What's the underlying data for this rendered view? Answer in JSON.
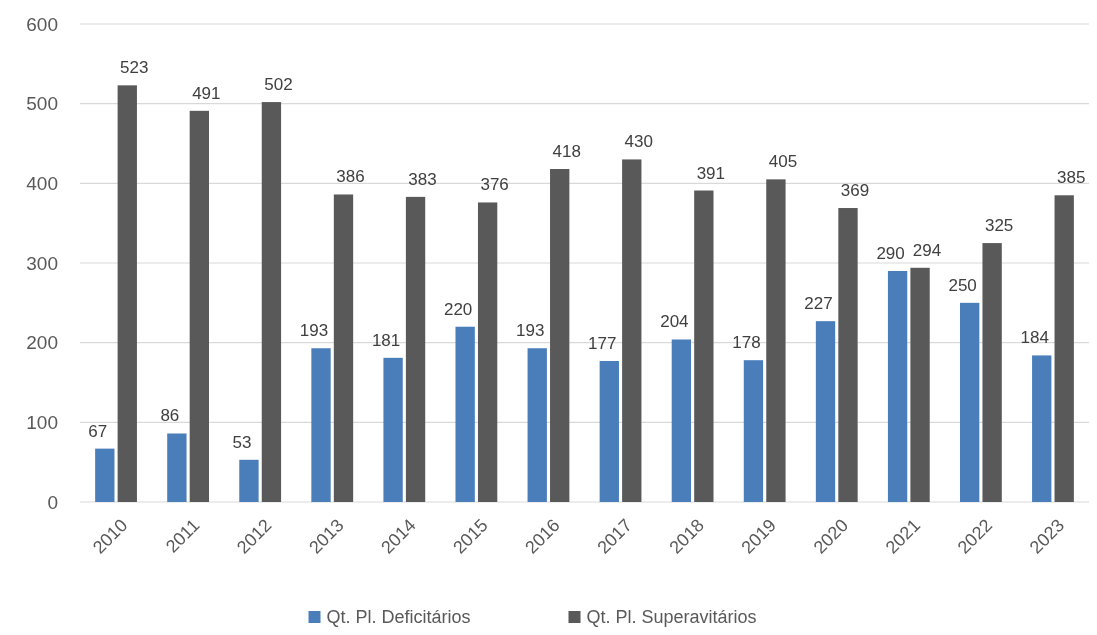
{
  "chart_data": {
    "type": "bar",
    "categories": [
      "2010",
      "2011",
      "2012",
      "2013",
      "2014",
      "2015",
      "2016",
      "2017",
      "2018",
      "2019",
      "2020",
      "2021",
      "2022",
      "2023"
    ],
    "series": [
      {
        "name": "Qt. Pl. Deficitários",
        "color": "#4a7ebb",
        "values": [
          67,
          86,
          53,
          193,
          181,
          220,
          193,
          177,
          204,
          178,
          227,
          290,
          250,
          184
        ]
      },
      {
        "name": "Qt. Pl. Superavitários",
        "color": "#595959",
        "values": [
          523,
          491,
          502,
          386,
          383,
          376,
          418,
          430,
          391,
          405,
          369,
          294,
          325,
          385
        ]
      }
    ],
    "ylim": [
      0,
      600
    ],
    "yticks": [
      0,
      100,
      200,
      300,
      400,
      500,
      600
    ],
    "grid": "y",
    "legend": "bottom",
    "data_labels": true
  }
}
